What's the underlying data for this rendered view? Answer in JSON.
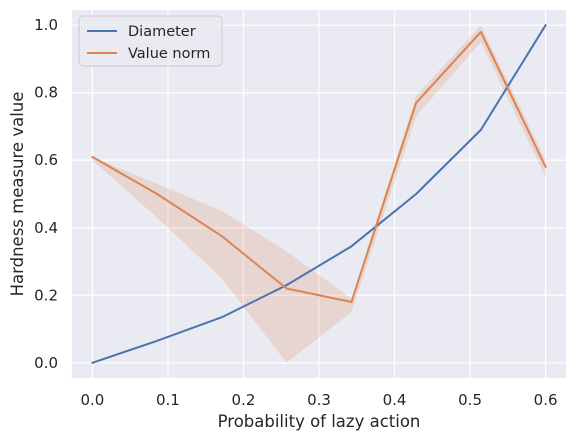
{
  "chart_data": {
    "type": "line",
    "xlabel": "Probability of lazy action",
    "ylabel": "Hardness measure value",
    "xlim": [
      -0.027,
      0.627
    ],
    "ylim": [
      -0.045,
      1.045
    ],
    "xticks": [
      "0.0",
      "0.1",
      "0.2",
      "0.3",
      "0.4",
      "0.5",
      "0.6"
    ],
    "xtick_values": [
      0.0,
      0.1,
      0.2,
      0.3,
      0.4,
      0.5,
      0.6
    ],
    "yticks": [
      "0.0",
      "0.2",
      "0.4",
      "0.6",
      "0.8",
      "1.0"
    ],
    "ytick_values": [
      0.0,
      0.2,
      0.4,
      0.6,
      0.8,
      1.0
    ],
    "grid": true,
    "legend_position": "top-left",
    "background": "#eaeaf2",
    "series": [
      {
        "name": "Diameter",
        "color": "#4c72b0",
        "x": [
          0.0,
          0.0857,
          0.1714,
          0.2571,
          0.3429,
          0.4286,
          0.5143,
          0.6
        ],
        "y": [
          0.0,
          0.065,
          0.135,
          0.23,
          0.345,
          0.5,
          0.69,
          1.0
        ]
      },
      {
        "name": "Value norm",
        "color": "#dd8452",
        "x": [
          0.0,
          0.0857,
          0.1714,
          0.2571,
          0.3429,
          0.4286,
          0.5143,
          0.6
        ],
        "y": [
          0.61,
          0.5,
          0.375,
          0.22,
          0.18,
          0.77,
          0.98,
          0.58
        ],
        "lower": [
          0.6,
          0.43,
          0.25,
          0.0,
          0.15,
          0.73,
          0.95,
          0.55
        ],
        "upper": [
          0.61,
          0.53,
          0.45,
          0.33,
          0.19,
          0.79,
          1.0,
          0.6
        ]
      }
    ]
  }
}
